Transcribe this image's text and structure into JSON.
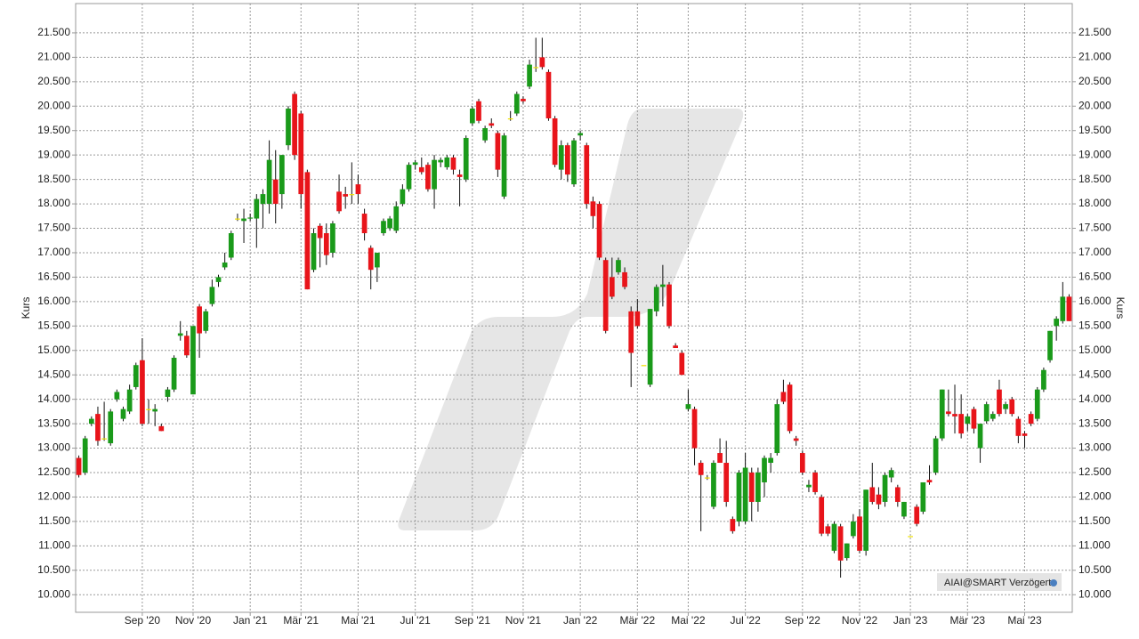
{
  "chart_data": {
    "type": "candlestick",
    "y_label": "Kurs",
    "badge": "AIAI@SMART Verzögert",
    "up_color": "#1a9a1a",
    "down_color": "#e8141a",
    "flat_color": "#f0e000",
    "grid": true,
    "ylim": [
      9640,
      22100
    ],
    "yticks": [
      {
        "value": 10000,
        "label": "10.000"
      },
      {
        "value": 10500,
        "label": "10.500"
      },
      {
        "value": 11000,
        "label": "11.000"
      },
      {
        "value": 11500,
        "label": "11.500"
      },
      {
        "value": 12000,
        "label": "12.000"
      },
      {
        "value": 12500,
        "label": "12.500"
      },
      {
        "value": 13000,
        "label": "13.000"
      },
      {
        "value": 13500,
        "label": "13.500"
      },
      {
        "value": 14000,
        "label": "14.000"
      },
      {
        "value": 14500,
        "label": "14.500"
      },
      {
        "value": 15000,
        "label": "15.000"
      },
      {
        "value": 15500,
        "label": "15.500"
      },
      {
        "value": 16000,
        "label": "16.000"
      },
      {
        "value": 16500,
        "label": "16.500"
      },
      {
        "value": 17000,
        "label": "17.000"
      },
      {
        "value": 17500,
        "label": "17.500"
      },
      {
        "value": 18000,
        "label": "18.000"
      },
      {
        "value": 18500,
        "label": "18.500"
      },
      {
        "value": 19000,
        "label": "19.000"
      },
      {
        "value": 19500,
        "label": "19.500"
      },
      {
        "value": 20000,
        "label": "20.000"
      },
      {
        "value": 20500,
        "label": "20.500"
      },
      {
        "value": 21000,
        "label": "21.000"
      },
      {
        "value": 21500,
        "label": "21.500"
      }
    ],
    "categories": [
      null,
      null,
      null,
      null,
      null,
      null,
      null,
      null,
      null,
      null,
      "Sep '20",
      null,
      null,
      null,
      null,
      null,
      null,
      null,
      "Nov '20",
      null,
      null,
      null,
      null,
      null,
      null,
      null,
      null,
      "Jan '21",
      null,
      null,
      null,
      null,
      null,
      null,
      null,
      "Mär '21",
      null,
      null,
      null,
      null,
      null,
      null,
      null,
      null,
      "Mai '21",
      null,
      null,
      null,
      null,
      null,
      null,
      null,
      null,
      "Jul '21",
      null,
      null,
      null,
      null,
      null,
      null,
      null,
      null,
      "Sep '21",
      null,
      null,
      null,
      null,
      null,
      null,
      null,
      "Nov '21",
      null,
      null,
      null,
      null,
      null,
      null,
      null,
      null,
      "Jan '22",
      null,
      null,
      null,
      null,
      null,
      null,
      null,
      null,
      "Mär '22",
      null,
      null,
      null,
      null,
      null,
      null,
      null,
      "Mai '22",
      null,
      null,
      null,
      null,
      null,
      null,
      null,
      null,
      "Jul '22",
      null,
      null,
      null,
      null,
      null,
      null,
      null,
      null,
      "Sep '22",
      null,
      null,
      null,
      null,
      null,
      null,
      null,
      null,
      "Nov '22",
      null,
      null,
      null,
      null,
      null,
      null,
      null,
      "Jan '23",
      null,
      null,
      null,
      null,
      null,
      null,
      null,
      null,
      "Mär '23",
      null,
      null,
      null,
      null,
      null,
      null,
      null,
      null,
      "Mai '23",
      null,
      null,
      null,
      null,
      null,
      null,
      null
    ],
    "ohlc": [
      [
        12800,
        12850,
        12400,
        12450
      ],
      [
        12500,
        13250,
        12450,
        13200
      ],
      [
        13500,
        13650,
        13450,
        13600
      ],
      [
        13700,
        13850,
        13050,
        13150
      ],
      [
        13200,
        13950,
        13150,
        13200
      ],
      [
        13100,
        13800,
        13050,
        13750
      ],
      [
        14000,
        14200,
        13950,
        14150
      ],
      [
        13600,
        13850,
        13550,
        13800
      ],
      [
        13750,
        14300,
        13700,
        14200
      ],
      [
        14250,
        14750,
        14200,
        14700
      ],
      [
        14800,
        15250,
        13450,
        13500
      ],
      [
        13800,
        14000,
        13500,
        13800
      ],
      [
        13750,
        13900,
        13450,
        13800
      ],
      [
        13450,
        13500,
        13350,
        13350
      ],
      [
        14050,
        14250,
        13950,
        14200
      ],
      [
        14200,
        14900,
        14150,
        14850
      ],
      [
        15300,
        15600,
        15200,
        15350
      ],
      [
        15300,
        15400,
        14850,
        14900
      ],
      [
        14100,
        15500,
        14100,
        15500
      ],
      [
        15900,
        15950,
        14850,
        15350
      ],
      [
        15400,
        15850,
        15350,
        15800
      ],
      [
        15950,
        16450,
        15900,
        16300
      ],
      [
        16400,
        16550,
        16300,
        16500
      ],
      [
        16700,
        17000,
        16650,
        16800
      ],
      [
        16900,
        17450,
        16850,
        17400
      ],
      [
        17700,
        17800,
        17650,
        17700
      ],
      [
        17650,
        17900,
        17200,
        17700
      ],
      [
        17700,
        17800,
        17650,
        17720
      ],
      [
        17700,
        18200,
        17100,
        18100
      ],
      [
        18000,
        18300,
        17500,
        18200
      ],
      [
        18000,
        19300,
        17800,
        18900
      ],
      [
        18500,
        19100,
        17600,
        18000
      ],
      [
        18200,
        19000,
        17900,
        19000
      ],
      [
        19200,
        20000,
        19100,
        19950
      ],
      [
        20250,
        20300,
        18900,
        19000
      ],
      [
        19850,
        19900,
        17900,
        18200
      ],
      [
        18650,
        18700,
        16250,
        16250
      ],
      [
        16650,
        17500,
        16600,
        17400
      ],
      [
        17550,
        17600,
        16700,
        17300
      ],
      [
        17400,
        17600,
        16750,
        16950
      ],
      [
        17000,
        17650,
        16900,
        17600
      ],
      [
        18250,
        18600,
        17800,
        17850
      ],
      [
        18200,
        18350,
        17900,
        18150
      ],
      [
        18200,
        18850,
        18000,
        18200
      ],
      [
        18400,
        18600,
        18000,
        18200
      ],
      [
        17800,
        17900,
        17250,
        17400
      ],
      [
        17100,
        17150,
        16250,
        16650
      ],
      [
        16700,
        17000,
        16400,
        17000
      ],
      [
        17400,
        17700,
        17350,
        17650
      ],
      [
        17500,
        17750,
        17450,
        17700
      ],
      [
        17450,
        18050,
        17400,
        17950
      ],
      [
        18000,
        18400,
        17950,
        18300
      ],
      [
        18300,
        18850,
        18250,
        18800
      ],
      [
        18800,
        18900,
        18700,
        18850
      ],
      [
        18750,
        18950,
        18600,
        18650
      ],
      [
        18800,
        18850,
        18250,
        18300
      ],
      [
        18300,
        19000,
        17900,
        18900
      ],
      [
        18850,
        18950,
        18750,
        18900
      ],
      [
        18750,
        19000,
        18700,
        18950
      ],
      [
        18950,
        19000,
        18600,
        18700
      ],
      [
        18600,
        18700,
        17950,
        18550
      ],
      [
        18500,
        19400,
        18450,
        19350
      ],
      [
        19650,
        20000,
        19600,
        19950
      ],
      [
        20100,
        20150,
        19650,
        19700
      ],
      [
        19300,
        19600,
        19250,
        19550
      ],
      [
        19650,
        19750,
        19550,
        19600
      ],
      [
        19450,
        19500,
        18550,
        18700
      ],
      [
        18150,
        19450,
        18100,
        19400
      ],
      [
        19750,
        19900,
        19700,
        19750
      ],
      [
        19850,
        20300,
        19800,
        20250
      ],
      [
        20150,
        20200,
        20050,
        20100
      ],
      [
        20400,
        20950,
        20350,
        20850
      ],
      [
        20800,
        21400,
        20700,
        20800
      ],
      [
        21000,
        21400,
        20750,
        20800
      ],
      [
        20700,
        20750,
        19700,
        19750
      ],
      [
        19750,
        19800,
        18750,
        18800
      ],
      [
        18700,
        19300,
        18500,
        19200
      ],
      [
        19200,
        19250,
        18450,
        18600
      ],
      [
        18400,
        19350,
        18350,
        19300
      ],
      [
        19400,
        19500,
        19300,
        19450
      ],
      [
        19200,
        19250,
        17900,
        18000
      ],
      [
        18050,
        18150,
        17500,
        17750
      ],
      [
        18000,
        18050,
        16850,
        16900
      ],
      [
        16850,
        16900,
        15350,
        15400
      ],
      [
        16500,
        16900,
        16050,
        16100
      ],
      [
        16600,
        16900,
        16550,
        16850
      ],
      [
        16600,
        16700,
        16250,
        16300
      ],
      [
        15800,
        15900,
        14250,
        14950
      ],
      [
        15800,
        16050,
        15450,
        15500
      ],
      [
        14700,
        14700,
        14700,
        14700
      ],
      [
        14300,
        15850,
        14250,
        15850
      ],
      [
        15800,
        16350,
        15700,
        16300
      ],
      [
        16300,
        16750,
        15900,
        16350
      ],
      [
        16350,
        16400,
        15450,
        15500
      ],
      [
        15100,
        15150,
        15050,
        15050
      ],
      [
        14950,
        15000,
        14500,
        14500
      ],
      [
        13800,
        14200,
        13750,
        13900
      ],
      [
        13800,
        13850,
        12650,
        13000
      ],
      [
        12700,
        12750,
        11300,
        12450
      ],
      [
        12400,
        12450,
        12350,
        12400
      ],
      [
        11800,
        12750,
        11750,
        12700
      ],
      [
        12900,
        13200,
        12700,
        12700
      ],
      [
        12700,
        13150,
        11800,
        11900
      ],
      [
        11550,
        11600,
        11250,
        11300
      ],
      [
        11500,
        12550,
        11400,
        12500
      ],
      [
        11500,
        12900,
        11450,
        12600
      ],
      [
        12500,
        12600,
        11500,
        11900
      ],
      [
        11900,
        12600,
        11700,
        12500
      ],
      [
        12300,
        12850,
        12000,
        12800
      ],
      [
        12700,
        12900,
        12500,
        12800
      ],
      [
        12900,
        14000,
        12850,
        13900
      ],
      [
        14150,
        14400,
        13900,
        13950
      ],
      [
        14300,
        14350,
        13300,
        13350
      ],
      [
        13200,
        13250,
        13050,
        13150
      ],
      [
        12900,
        12950,
        12450,
        12500
      ],
      [
        12200,
        12350,
        12100,
        12250
      ],
      [
        12500,
        12550,
        12050,
        12100
      ],
      [
        12000,
        12050,
        11200,
        11250
      ],
      [
        11400,
        11450,
        11200,
        11250
      ],
      [
        10900,
        11500,
        10850,
        11450
      ],
      [
        11400,
        11450,
        10350,
        10700
      ],
      [
        10750,
        11050,
        10700,
        11050
      ],
      [
        11200,
        11650,
        11150,
        11500
      ],
      [
        11600,
        11750,
        10850,
        10900
      ],
      [
        10900,
        12150,
        10800,
        12150
      ],
      [
        12200,
        12700,
        11850,
        11900
      ],
      [
        12050,
        12200,
        11750,
        11850
      ],
      [
        11900,
        12500,
        11800,
        12450
      ],
      [
        12400,
        12600,
        12300,
        12550
      ],
      [
        12200,
        12250,
        11800,
        11900
      ],
      [
        11600,
        11900,
        11550,
        11900
      ],
      [
        11200,
        11200,
        11200,
        11200
      ],
      [
        11800,
        11850,
        11400,
        11450
      ],
      [
        11700,
        12300,
        11650,
        12300
      ],
      [
        12350,
        12650,
        12250,
        12300
      ],
      [
        12500,
        13250,
        12450,
        13200
      ],
      [
        13200,
        14200,
        13150,
        14200
      ],
      [
        13750,
        14200,
        13650,
        13700
      ],
      [
        13700,
        14300,
        13300,
        13650
      ],
      [
        13700,
        14100,
        13200,
        13300
      ],
      [
        13500,
        13700,
        13350,
        13650
      ],
      [
        13800,
        13850,
        13300,
        13400
      ],
      [
        13000,
        13500,
        12700,
        13500
      ],
      [
        13550,
        13950,
        13500,
        13900
      ],
      [
        13600,
        13750,
        13550,
        13700
      ],
      [
        14200,
        14400,
        13650,
        13700
      ],
      [
        13800,
        13950,
        13700,
        13900
      ],
      [
        14000,
        14050,
        13650,
        13700
      ],
      [
        13600,
        13650,
        13100,
        13250
      ],
      [
        13300,
        13350,
        13000,
        13250
      ],
      [
        13700,
        13750,
        13450,
        13500
      ],
      [
        13600,
        14250,
        13550,
        14200
      ],
      [
        14200,
        14650,
        14150,
        14600
      ],
      [
        14800,
        15400,
        14750,
        15400
      ],
      [
        15500,
        15700,
        15200,
        15650
      ],
      [
        15600,
        16400,
        15550,
        16100
      ],
      [
        16100,
        16150,
        15600,
        15600
      ]
    ]
  }
}
